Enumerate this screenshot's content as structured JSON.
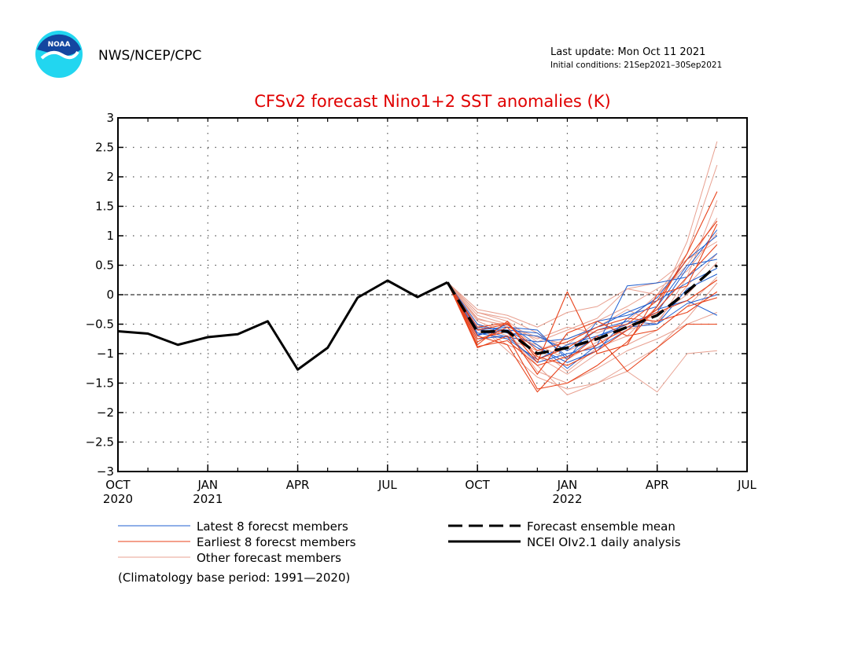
{
  "header": {
    "org": "NWS/NCEP/CPC",
    "logo_text": "NOAA",
    "last_update": "Last update: Mon Oct 11 2021",
    "initial_conditions": "Initial conditions: 21Sep2021–30Sep2021"
  },
  "footnote": "(Climatology base period: 1991—2020)",
  "colors": {
    "latest": "#1f5fd0",
    "earliest": "#e8421a",
    "other": "#e8a090",
    "mean": "#000000",
    "analysis": "#000000",
    "title": "#e00000",
    "logo_blue": "#1446a0",
    "logo_cyan": "#22d6f0"
  },
  "chart_data": {
    "type": "line",
    "title": "CFSv2 forecast Nino1+2 SST anomalies (K)",
    "xlabel": "",
    "ylabel": "",
    "xlim": [
      0,
      21
    ],
    "ylim": [
      -3,
      3
    ],
    "y_ticks": [
      "3",
      "2.5",
      "2",
      "1.5",
      "1",
      "0.5",
      "0",
      "−0.5",
      "−1",
      "−1.5",
      "−2",
      "−2.5",
      "−3"
    ],
    "y_tick_values": [
      3,
      2.5,
      2,
      1.5,
      1,
      0.5,
      0,
      -0.5,
      -1,
      -1.5,
      -2,
      -2.5,
      -3
    ],
    "x_ticks": [
      {
        "pos": 0,
        "label": "OCT",
        "year": "2020"
      },
      {
        "pos": 3,
        "label": "JAN",
        "year": "2021"
      },
      {
        "pos": 6,
        "label": "APR",
        "year": ""
      },
      {
        "pos": 9,
        "label": "JUL",
        "year": ""
      },
      {
        "pos": 12,
        "label": "OCT",
        "year": ""
      },
      {
        "pos": 15,
        "label": "JAN",
        "year": "2022"
      },
      {
        "pos": 18,
        "label": "APR",
        "year": ""
      },
      {
        "pos": 21,
        "label": "JUL",
        "year": ""
      }
    ],
    "grid": true,
    "legend": {
      "latest": "Latest 8 forecst members",
      "earliest": "Earliest 8 forecst members",
      "other": "Other forecast members",
      "mean": "Forecast ensemble mean",
      "analysis": "NCEI OIv2.1 daily analysis"
    },
    "analysis": {
      "x": [
        0,
        1,
        2,
        3,
        4,
        5,
        6,
        7,
        8,
        9,
        10,
        11
      ],
      "y": [
        -0.62,
        -0.66,
        -0.85,
        -0.72,
        -0.67,
        -0.45,
        -1.27,
        -0.9,
        -0.05,
        0.24,
        -0.04,
        0.21
      ]
    },
    "ensemble_mean": {
      "x": [
        11,
        12,
        13,
        14,
        15,
        16,
        17,
        18,
        19,
        20
      ],
      "y": [
        0.21,
        -0.63,
        -0.62,
        -1.0,
        -0.9,
        -0.75,
        -0.55,
        -0.35,
        0.05,
        0.5
      ]
    },
    "member_x": [
      11,
      12,
      13,
      14,
      15,
      16,
      17,
      18,
      19,
      20
    ],
    "latest_members": [
      [
        0.21,
        -0.55,
        -0.6,
        -0.65,
        -1.05,
        -0.7,
        -0.5,
        -0.3,
        0.45,
        1.1
      ],
      [
        0.21,
        -0.7,
        -0.5,
        -0.85,
        -1.25,
        -0.85,
        0.15,
        0.2,
        0.3,
        0.7
      ],
      [
        0.21,
        -0.65,
        -0.75,
        -1.1,
        -0.85,
        -0.7,
        -0.55,
        -0.5,
        0.1,
        0.35
      ],
      [
        0.21,
        -0.6,
        -0.55,
        -0.6,
        -1.1,
        -0.45,
        -0.35,
        -0.2,
        0.5,
        0.6
      ],
      [
        0.21,
        -0.75,
        -0.7,
        -1.15,
        -1.0,
        -0.9,
        -0.6,
        -0.25,
        -0.1,
        -0.35
      ],
      [
        0.21,
        -0.5,
        -0.65,
        -0.7,
        -0.95,
        -0.6,
        -0.45,
        -0.5,
        -0.15,
        0.0
      ],
      [
        0.21,
        -0.68,
        -0.6,
        -0.9,
        -1.15,
        -0.95,
        -0.4,
        -0.05,
        0.6,
        1.0
      ],
      [
        0.21,
        -0.58,
        -0.72,
        -0.8,
        -0.75,
        -0.55,
        -0.3,
        -0.1,
        0.2,
        0.45
      ]
    ],
    "earliest_members": [
      [
        0.21,
        -0.85,
        -0.45,
        -1.1,
        -0.9,
        -0.6,
        -0.5,
        -0.1,
        0.6,
        1.25
      ],
      [
        0.21,
        -0.9,
        -0.7,
        -1.6,
        -1.5,
        -1.2,
        -0.8,
        -0.2,
        0.7,
        1.75
      ],
      [
        0.21,
        -0.8,
        -0.55,
        -1.15,
        0.05,
        -1.0,
        -0.85,
        0.0,
        0.15,
        1.2
      ],
      [
        0.21,
        -0.7,
        -0.85,
        -1.65,
        -1.1,
        -0.7,
        -1.3,
        -0.9,
        -0.5,
        -0.5
      ],
      [
        0.21,
        -0.6,
        -0.5,
        -0.95,
        -0.8,
        -0.55,
        -0.4,
        -0.45,
        -0.3,
        0.05
      ],
      [
        0.21,
        -0.88,
        -0.78,
        -1.2,
        -1.05,
        -0.85,
        -0.55,
        -0.3,
        -0.1,
        0.25
      ],
      [
        0.21,
        -0.75,
        -0.62,
        -1.35,
        -0.65,
        -0.45,
        -0.7,
        -0.6,
        -0.2,
        -0.05
      ],
      [
        0.21,
        -0.55,
        -0.48,
        -1.05,
        -1.2,
        -0.95,
        -0.6,
        -0.25,
        0.3,
        0.85
      ]
    ],
    "other_members": [
      [
        0.21,
        -0.3,
        -0.45,
        -0.8,
        -0.6,
        -0.4,
        0.1,
        0.0,
        0.5,
        1.3
      ],
      [
        0.21,
        -0.35,
        -0.5,
        -0.9,
        -1.3,
        -0.9,
        -0.7,
        -0.2,
        0.9,
        2.6
      ],
      [
        0.21,
        -0.5,
        -0.95,
        -1.4,
        -1.6,
        -1.5,
        -1.3,
        -1.65,
        -1.0,
        -0.95
      ],
      [
        0.21,
        -0.25,
        -0.35,
        -0.55,
        -0.3,
        -0.2,
        0.1,
        0.2,
        0.6,
        0.9
      ],
      [
        0.21,
        -0.45,
        -0.65,
        -1.2,
        -1.7,
        -1.5,
        -1.2,
        -0.9,
        -0.4,
        0.2
      ],
      [
        0.21,
        -0.6,
        -0.75,
        -0.95,
        -0.75,
        -0.55,
        -0.25,
        -0.5,
        0.3,
        1.6
      ],
      [
        0.21,
        -0.4,
        -0.55,
        -0.75,
        -0.55,
        -0.65,
        -0.45,
        0.0,
        0.7,
        2.2
      ],
      [
        0.21,
        -0.55,
        -0.85,
        -1.05,
        -1.35,
        -1.0,
        -0.85,
        -0.6,
        -0.2,
        0.3
      ],
      [
        0.21,
        -0.3,
        -0.4,
        -0.65,
        -0.95,
        -0.75,
        -0.5,
        -0.35,
        0.0,
        0.55
      ],
      [
        0.21,
        -0.65,
        -0.6,
        -1.3,
        -1.5,
        -1.25,
        -0.95,
        -0.75,
        -0.5,
        -0.3
      ],
      [
        0.21,
        -0.42,
        -0.52,
        -0.72,
        -0.85,
        -0.45,
        -0.2,
        0.1,
        0.4,
        1.05
      ],
      [
        0.21,
        -0.5,
        -0.7,
        -0.85,
        -1.1,
        -0.8,
        -0.6,
        -0.45,
        0.15,
        0.7
      ]
    ]
  }
}
